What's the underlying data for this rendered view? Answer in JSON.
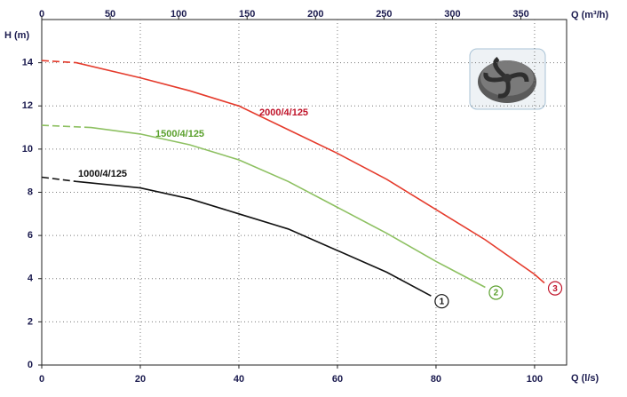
{
  "chart_data": {
    "type": "line",
    "x_label": "Q (l/s)",
    "x2_label": "Q (m³/h)",
    "y_label": "H (m)",
    "xlim": [
      0,
      106.5
    ],
    "xticks": [
      0,
      20,
      40,
      60,
      80,
      100
    ],
    "x2lim": [
      0,
      383.4
    ],
    "x2ticks": [
      0,
      50,
      100,
      150,
      200,
      250,
      300,
      350
    ],
    "ylim": [
      0,
      16
    ],
    "yticks": [
      0,
      2,
      4,
      6,
      8,
      10,
      12,
      14
    ],
    "grid": true,
    "series": [
      {
        "name": "1000/4/125",
        "marker": "1",
        "color": "#111111",
        "x": [
          0,
          7,
          20,
          30,
          40,
          50,
          60,
          70,
          79
        ],
        "values": [
          8.7,
          8.5,
          8.2,
          7.7,
          7.0,
          6.3,
          5.3,
          4.3,
          3.2
        ]
      },
      {
        "name": "1500/4/125",
        "marker": "2",
        "color": "#8dc061",
        "x": [
          0,
          10,
          20,
          30,
          40,
          50,
          60,
          70,
          80,
          90
        ],
        "values": [
          11.1,
          11.0,
          10.7,
          10.2,
          9.5,
          8.5,
          7.3,
          6.1,
          4.8,
          3.6
        ]
      },
      {
        "name": "2000/4/125",
        "marker": "3",
        "color": "#e53b2c",
        "x": [
          0,
          7,
          20,
          30,
          40,
          50,
          60,
          70,
          80,
          90,
          100,
          102
        ],
        "values": [
          14.1,
          14.0,
          13.3,
          12.7,
          12.0,
          10.9,
          9.8,
          8.6,
          7.2,
          5.8,
          4.2,
          3.8
        ]
      }
    ]
  }
}
